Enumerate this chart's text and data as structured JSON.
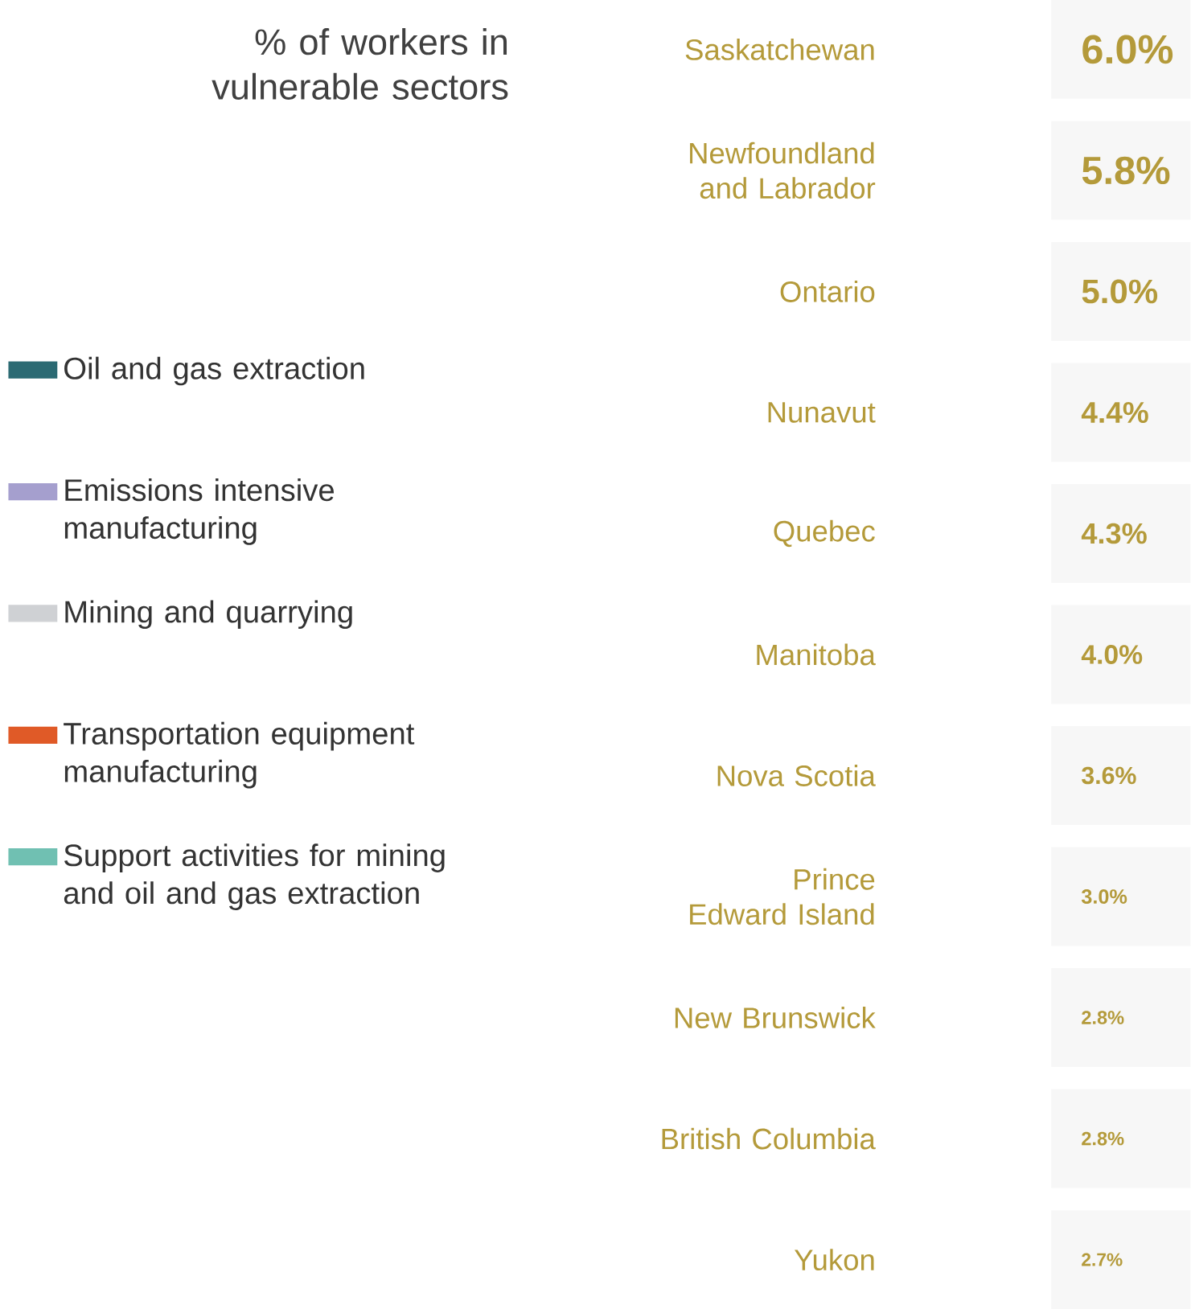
{
  "chart_data": {
    "type": "other",
    "title": "% of workers in vulnerable sectors",
    "categories": [
      "Saskatchewan",
      "Newfoundland and Labrador",
      "Ontario",
      "Nunavut",
      "Quebec",
      "Manitoba",
      "Nova Scotia",
      "Prince Edward Island",
      "New Brunswick",
      "British Columbia",
      "Yukon"
    ],
    "values": [
      6.0,
      5.8,
      5.0,
      4.4,
      4.3,
      4.0,
      3.6,
      3.0,
      2.8,
      2.8,
      2.7
    ],
    "value_labels": [
      "6.0%",
      "5.8%",
      "5.0%",
      "4.4%",
      "4.3%",
      "4.0%",
      "3.6%",
      "3.0%",
      "2.8%",
      "2.8%",
      "2.7%"
    ],
    "series": [
      {
        "name": "Oil and gas extraction",
        "color": "#2b6a73",
        "values": [
          null,
          null,
          null,
          null,
          null,
          null,
          null,
          null,
          null,
          null,
          null
        ]
      },
      {
        "name": "Emissions intensive manufacturing",
        "color": "#a59fce",
        "values": [
          null,
          null,
          null,
          null,
          null,
          null,
          null,
          null,
          null,
          null,
          null
        ]
      },
      {
        "name": "Mining and quarrying",
        "color": "#cfd1d4",
        "values": [
          null,
          null,
          null,
          null,
          null,
          null,
          null,
          null,
          null,
          null,
          null
        ]
      },
      {
        "name": "Transportation equipment manufacturing",
        "color": "#e05a27",
        "values": [
          null,
          null,
          null,
          null,
          null,
          null,
          null,
          null,
          null,
          null,
          null
        ]
      },
      {
        "name": "Support activities for mining and oil and gas extraction",
        "color": "#70c0b2",
        "values": [
          null,
          null,
          null,
          null,
          null,
          null,
          null,
          null,
          null,
          null,
          null
        ]
      }
    ],
    "legend": "left"
  }
}
